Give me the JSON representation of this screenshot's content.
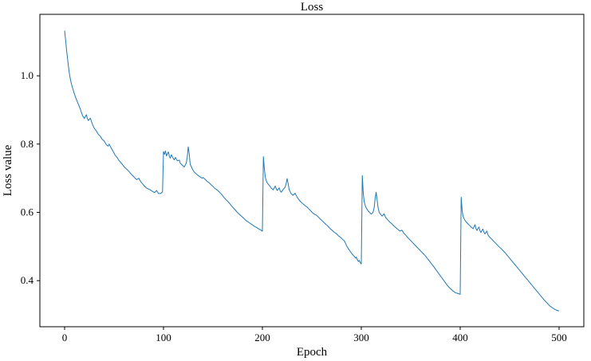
{
  "figure": {
    "background": "#ffffff",
    "axis_color": "#000000"
  },
  "chart_data": {
    "type": "line",
    "title": "Loss",
    "xlabel": "Epoch",
    "ylabel": "Loss value",
    "xlim": [
      -25,
      525
    ],
    "ylim": [
      0.265,
      1.18
    ],
    "x_ticks": [
      0,
      100,
      200,
      300,
      400,
      500
    ],
    "y_ticks": [
      0.4,
      0.6,
      0.8,
      1.0
    ],
    "grid": false,
    "legend": null,
    "series": [
      {
        "name": "loss",
        "color": "#1f77b4",
        "points": [
          [
            0,
            1.132
          ],
          [
            1,
            1.105
          ],
          [
            2,
            1.075
          ],
          [
            3,
            1.05
          ],
          [
            4,
            1.025
          ],
          [
            5,
            1.003
          ],
          [
            6,
            0.988
          ],
          [
            7,
            0.975
          ],
          [
            8,
            0.965
          ],
          [
            10,
            0.946
          ],
          [
            12,
            0.93
          ],
          [
            14,
            0.916
          ],
          [
            16,
            0.902
          ],
          [
            18,
            0.884
          ],
          [
            20,
            0.875
          ],
          [
            21,
            0.881
          ],
          [
            22,
            0.886
          ],
          [
            23,
            0.875
          ],
          [
            24,
            0.869
          ],
          [
            26,
            0.876
          ],
          [
            28,
            0.859
          ],
          [
            30,
            0.846
          ],
          [
            32,
            0.839
          ],
          [
            34,
            0.829
          ],
          [
            36,
            0.823
          ],
          [
            38,
            0.814
          ],
          [
            40,
            0.809
          ],
          [
            42,
            0.799
          ],
          [
            44,
            0.794
          ],
          [
            45,
            0.8
          ],
          [
            47,
            0.789
          ],
          [
            49,
            0.779
          ],
          [
            51,
            0.768
          ],
          [
            53,
            0.761
          ],
          [
            55,
            0.752
          ],
          [
            57,
            0.745
          ],
          [
            59,
            0.738
          ],
          [
            61,
            0.731
          ],
          [
            63,
            0.726
          ],
          [
            65,
            0.72
          ],
          [
            67,
            0.713
          ],
          [
            69,
            0.707
          ],
          [
            71,
            0.701
          ],
          [
            73,
            0.696
          ],
          [
            75,
            0.7
          ],
          [
            77,
            0.69
          ],
          [
            79,
            0.683
          ],
          [
            81,
            0.676
          ],
          [
            83,
            0.671
          ],
          [
            85,
            0.668
          ],
          [
            87,
            0.665
          ],
          [
            89,
            0.661
          ],
          [
            91,
            0.658
          ],
          [
            93,
            0.664
          ],
          [
            95,
            0.655
          ],
          [
            97,
            0.655
          ],
          [
            99,
            0.66
          ],
          [
            100,
            0.778
          ],
          [
            101,
            0.77
          ],
          [
            102,
            0.78
          ],
          [
            103,
            0.765
          ],
          [
            104,
            0.772
          ],
          [
            105,
            0.777
          ],
          [
            106,
            0.763
          ],
          [
            107,
            0.759
          ],
          [
            108,
            0.769
          ],
          [
            110,
            0.757
          ],
          [
            111,
            0.754
          ],
          [
            112,
            0.761
          ],
          [
            114,
            0.751
          ],
          [
            116,
            0.753
          ],
          [
            117,
            0.744
          ],
          [
            119,
            0.738
          ],
          [
            121,
            0.733
          ],
          [
            123,
            0.744
          ],
          [
            124,
            0.762
          ],
          [
            125,
            0.792
          ],
          [
            126,
            0.772
          ],
          [
            127,
            0.741
          ],
          [
            129,
            0.728
          ],
          [
            131,
            0.718
          ],
          [
            133,
            0.713
          ],
          [
            135,
            0.708
          ],
          [
            137,
            0.704
          ],
          [
            139,
            0.7
          ],
          [
            140,
            0.702
          ],
          [
            142,
            0.697
          ],
          [
            144,
            0.691
          ],
          [
            146,
            0.687
          ],
          [
            148,
            0.681
          ],
          [
            150,
            0.676
          ],
          [
            152,
            0.67
          ],
          [
            154,
            0.666
          ],
          [
            156,
            0.661
          ],
          [
            158,
            0.655
          ],
          [
            160,
            0.648
          ],
          [
            162,
            0.641
          ],
          [
            164,
            0.635
          ],
          [
            166,
            0.629
          ],
          [
            168,
            0.622
          ],
          [
            170,
            0.615
          ],
          [
            172,
            0.609
          ],
          [
            174,
            0.602
          ],
          [
            176,
            0.596
          ],
          [
            178,
            0.591
          ],
          [
            180,
            0.586
          ],
          [
            182,
            0.58
          ],
          [
            184,
            0.575
          ],
          [
            186,
            0.571
          ],
          [
            188,
            0.567
          ],
          [
            190,
            0.563
          ],
          [
            192,
            0.559
          ],
          [
            194,
            0.556
          ],
          [
            196,
            0.552
          ],
          [
            198,
            0.549
          ],
          [
            200,
            0.545
          ],
          [
            201,
            0.763
          ],
          [
            202,
            0.727
          ],
          [
            203,
            0.702
          ],
          [
            204,
            0.692
          ],
          [
            205,
            0.686
          ],
          [
            206,
            0.682
          ],
          [
            207,
            0.679
          ],
          [
            209,
            0.671
          ],
          [
            211,
            0.666
          ],
          [
            212,
            0.672
          ],
          [
            213,
            0.677
          ],
          [
            214,
            0.669
          ],
          [
            215,
            0.664
          ],
          [
            217,
            0.672
          ],
          [
            218,
            0.663
          ],
          [
            219,
            0.659
          ],
          [
            221,
            0.667
          ],
          [
            223,
            0.674
          ],
          [
            224,
            0.684
          ],
          [
            225,
            0.699
          ],
          [
            226,
            0.685
          ],
          [
            227,
            0.667
          ],
          [
            229,
            0.655
          ],
          [
            231,
            0.65
          ],
          [
            233,
            0.656
          ],
          [
            235,
            0.645
          ],
          [
            237,
            0.637
          ],
          [
            239,
            0.63
          ],
          [
            241,
            0.625
          ],
          [
            243,
            0.62
          ],
          [
            245,
            0.616
          ],
          [
            247,
            0.61
          ],
          [
            249,
            0.604
          ],
          [
            251,
            0.598
          ],
          [
            253,
            0.594
          ],
          [
            255,
            0.591
          ],
          [
            257,
            0.585
          ],
          [
            259,
            0.579
          ],
          [
            261,
            0.574
          ],
          [
            263,
            0.568
          ],
          [
            265,
            0.563
          ],
          [
            267,
            0.557
          ],
          [
            269,
            0.551
          ],
          [
            271,
            0.546
          ],
          [
            273,
            0.541
          ],
          [
            275,
            0.537
          ],
          [
            277,
            0.531
          ],
          [
            279,
            0.527
          ],
          [
            281,
            0.521
          ],
          [
            283,
            0.516
          ],
          [
            285,
            0.503
          ],
          [
            287,
            0.493
          ],
          [
            289,
            0.485
          ],
          [
            291,
            0.477
          ],
          [
            293,
            0.471
          ],
          [
            294,
            0.466
          ],
          [
            295,
            0.469
          ],
          [
            296,
            0.461
          ],
          [
            297,
            0.456
          ],
          [
            298,
            0.459
          ],
          [
            299,
            0.452
          ],
          [
            300,
            0.449
          ],
          [
            301,
            0.708
          ],
          [
            302,
            0.655
          ],
          [
            303,
            0.63
          ],
          [
            304,
            0.62
          ],
          [
            305,
            0.613
          ],
          [
            306,
            0.608
          ],
          [
            307,
            0.604
          ],
          [
            309,
            0.598
          ],
          [
            310,
            0.595
          ],
          [
            311,
            0.597
          ],
          [
            312,
            0.601
          ],
          [
            313,
            0.614
          ],
          [
            314,
            0.641
          ],
          [
            315,
            0.659
          ],
          [
            316,
            0.637
          ],
          [
            317,
            0.613
          ],
          [
            318,
            0.601
          ],
          [
            319,
            0.596
          ],
          [
            321,
            0.589
          ],
          [
            322,
            0.592
          ],
          [
            323,
            0.596
          ],
          [
            324,
            0.589
          ],
          [
            325,
            0.584
          ],
          [
            327,
            0.577
          ],
          [
            329,
            0.571
          ],
          [
            331,
            0.566
          ],
          [
            333,
            0.56
          ],
          [
            335,
            0.555
          ],
          [
            337,
            0.55
          ],
          [
            339,
            0.545
          ],
          [
            341,
            0.548
          ],
          [
            343,
            0.539
          ],
          [
            345,
            0.533
          ],
          [
            347,
            0.526
          ],
          [
            349,
            0.52
          ],
          [
            351,
            0.514
          ],
          [
            353,
            0.508
          ],
          [
            355,
            0.502
          ],
          [
            357,
            0.496
          ],
          [
            359,
            0.49
          ],
          [
            361,
            0.484
          ],
          [
            363,
            0.478
          ],
          [
            365,
            0.472
          ],
          [
            367,
            0.464
          ],
          [
            369,
            0.457
          ],
          [
            371,
            0.449
          ],
          [
            373,
            0.442
          ],
          [
            375,
            0.434
          ],
          [
            377,
            0.426
          ],
          [
            379,
            0.418
          ],
          [
            381,
            0.41
          ],
          [
            383,
            0.402
          ],
          [
            385,
            0.394
          ],
          [
            387,
            0.386
          ],
          [
            389,
            0.38
          ],
          [
            391,
            0.374
          ],
          [
            393,
            0.369
          ],
          [
            395,
            0.365
          ],
          [
            397,
            0.363
          ],
          [
            399,
            0.361
          ],
          [
            400,
            0.36
          ],
          [
            401,
            0.644
          ],
          [
            402,
            0.603
          ],
          [
            403,
            0.588
          ],
          [
            404,
            0.581
          ],
          [
            405,
            0.576
          ],
          [
            406,
            0.572
          ],
          [
            407,
            0.569
          ],
          [
            409,
            0.563
          ],
          [
            411,
            0.557
          ],
          [
            413,
            0.552
          ],
          [
            414,
            0.558
          ],
          [
            415,
            0.564
          ],
          [
            416,
            0.552
          ],
          [
            417,
            0.547
          ],
          [
            418,
            0.553
          ],
          [
            419,
            0.557
          ],
          [
            420,
            0.546
          ],
          [
            421,
            0.541
          ],
          [
            422,
            0.547
          ],
          [
            423,
            0.551
          ],
          [
            424,
            0.542
          ],
          [
            425,
            0.537
          ],
          [
            427,
            0.545
          ],
          [
            428,
            0.535
          ],
          [
            429,
            0.53
          ],
          [
            431,
            0.524
          ],
          [
            433,
            0.518
          ],
          [
            435,
            0.512
          ],
          [
            437,
            0.506
          ],
          [
            439,
            0.5
          ],
          [
            441,
            0.495
          ],
          [
            443,
            0.489
          ],
          [
            445,
            0.483
          ],
          [
            447,
            0.476
          ],
          [
            449,
            0.469
          ],
          [
            451,
            0.462
          ],
          [
            453,
            0.455
          ],
          [
            455,
            0.448
          ],
          [
            457,
            0.441
          ],
          [
            459,
            0.434
          ],
          [
            461,
            0.427
          ],
          [
            463,
            0.42
          ],
          [
            465,
            0.413
          ],
          [
            467,
            0.406
          ],
          [
            469,
            0.399
          ],
          [
            471,
            0.392
          ],
          [
            473,
            0.385
          ],
          [
            475,
            0.378
          ],
          [
            477,
            0.371
          ],
          [
            479,
            0.364
          ],
          [
            481,
            0.357
          ],
          [
            483,
            0.35
          ],
          [
            485,
            0.343
          ],
          [
            487,
            0.337
          ],
          [
            489,
            0.331
          ],
          [
            491,
            0.325
          ],
          [
            493,
            0.321
          ],
          [
            495,
            0.317
          ],
          [
            497,
            0.314
          ],
          [
            499,
            0.312
          ],
          [
            500,
            0.311
          ]
        ]
      }
    ]
  }
}
